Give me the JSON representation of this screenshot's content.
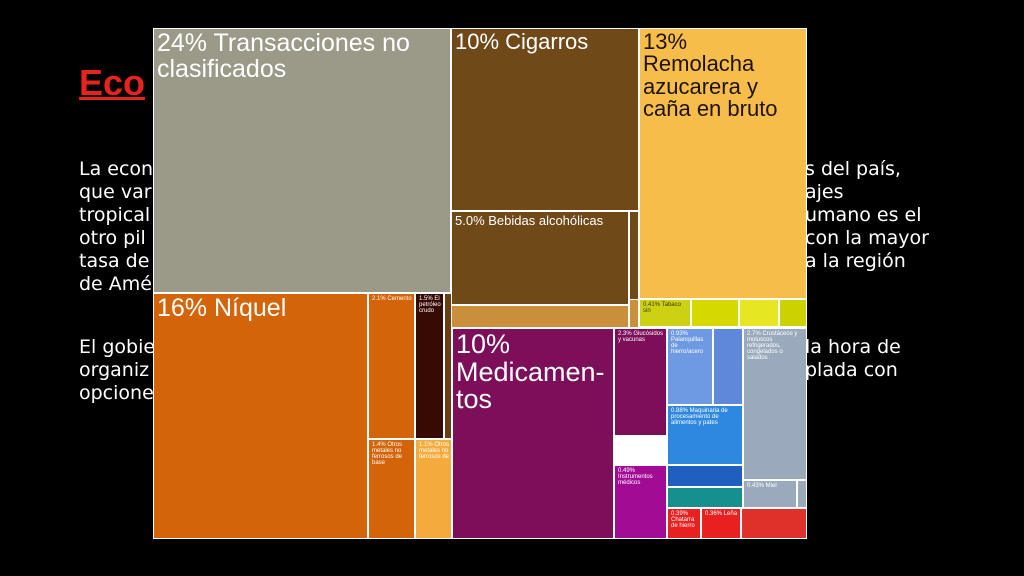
{
  "slide": {
    "title": "Eco",
    "paragraphs": [
      [
        "La econ",
        "s del país,",
        "que var",
        "ajes",
        "tropical",
        "umano es el",
        "otro pil",
        "con la mayor",
        "tasa de",
        "a la región",
        "de Amé"
      ],
      [
        "El gobie",
        "la hora de",
        "organiz",
        "plada con",
        "opcione"
      ]
    ]
  },
  "chart_data": {
    "type": "treemap",
    "title": "",
    "tiles": [
      {
        "label": "24% Transacciones no clasificados",
        "value": 24,
        "color": "#9b9a89",
        "text_color": "#ffffff"
      },
      {
        "label": "10% Cigarros",
        "value": 10,
        "color": "#704919",
        "text_color": "#ffffff"
      },
      {
        "label": "13% Remolacha azucarera y caña en bruto",
        "value": 13,
        "color": "#f7bd4a",
        "text_color": "#1d1304"
      },
      {
        "label": "5.0% Bebidas alcohólicas",
        "value": 5.0,
        "color": "#704919",
        "text_color": "#ffffff"
      },
      {
        "label": "0.41% Tabaco sin",
        "value": 0.41,
        "color": "#cdd114",
        "text_color": "#3a3a05"
      },
      {
        "label": "16% Níquel",
        "value": 16,
        "color": "#d3640a",
        "text_color": "#ffffff"
      },
      {
        "label": "2.1% Cemento",
        "value": 2.1,
        "color": "#d3640a",
        "text_color": "#ffffff"
      },
      {
        "label": "1.5% El petróleo crudo",
        "value": 1.5,
        "color": "#380a04",
        "text_color": "#ffffff"
      },
      {
        "label": "1.4% Otros metales no ferrosos de base",
        "value": 1.4,
        "color": "#d3640a",
        "text_color": "#ffffff"
      },
      {
        "label": "1.1% Otros metales no ferrosos de",
        "value": 1.1,
        "color": "#f4ab3c",
        "text_color": "#ffffff"
      },
      {
        "label": "10% Medicamen- tos",
        "value": 10,
        "color": "#7d0e5a",
        "text_color": "#ffffff"
      },
      {
        "label": "2.3% Glucósidos y vacunas",
        "value": 2.3,
        "color": "#7d0e5a",
        "text_color": "#ffffff"
      },
      {
        "label": "0.93% Palanquillas de hierro/acero",
        "value": 0.93,
        "color": "#6e99e3",
        "text_color": "#ffffff"
      },
      {
        "label": "2.7% Crustáceos y moluscos refrigerados, congelados o salados",
        "value": 2.7,
        "color": "#9aaabc",
        "text_color": "#ffffff"
      },
      {
        "label": "0.88% Maquinaria de procesamiento de alimentos y pates",
        "value": 0.88,
        "color": "#2e88e0",
        "text_color": "#ffffff"
      },
      {
        "label": "0.43% Miel",
        "value": 0.43,
        "color": "#9aaabc",
        "text_color": "#ffffff"
      },
      {
        "label": "0.49% Instrumentos médicos",
        "value": 0.49,
        "color": "#a20c95",
        "text_color": "#ffffff"
      },
      {
        "label": "0.39% Chatarra de hierro",
        "value": 0.39,
        "color": "#e82020",
        "text_color": "#ffffff"
      },
      {
        "label": "0.36% Leña",
        "value": 0.36,
        "color": "#e82020",
        "text_color": "#ffffff"
      }
    ]
  }
}
